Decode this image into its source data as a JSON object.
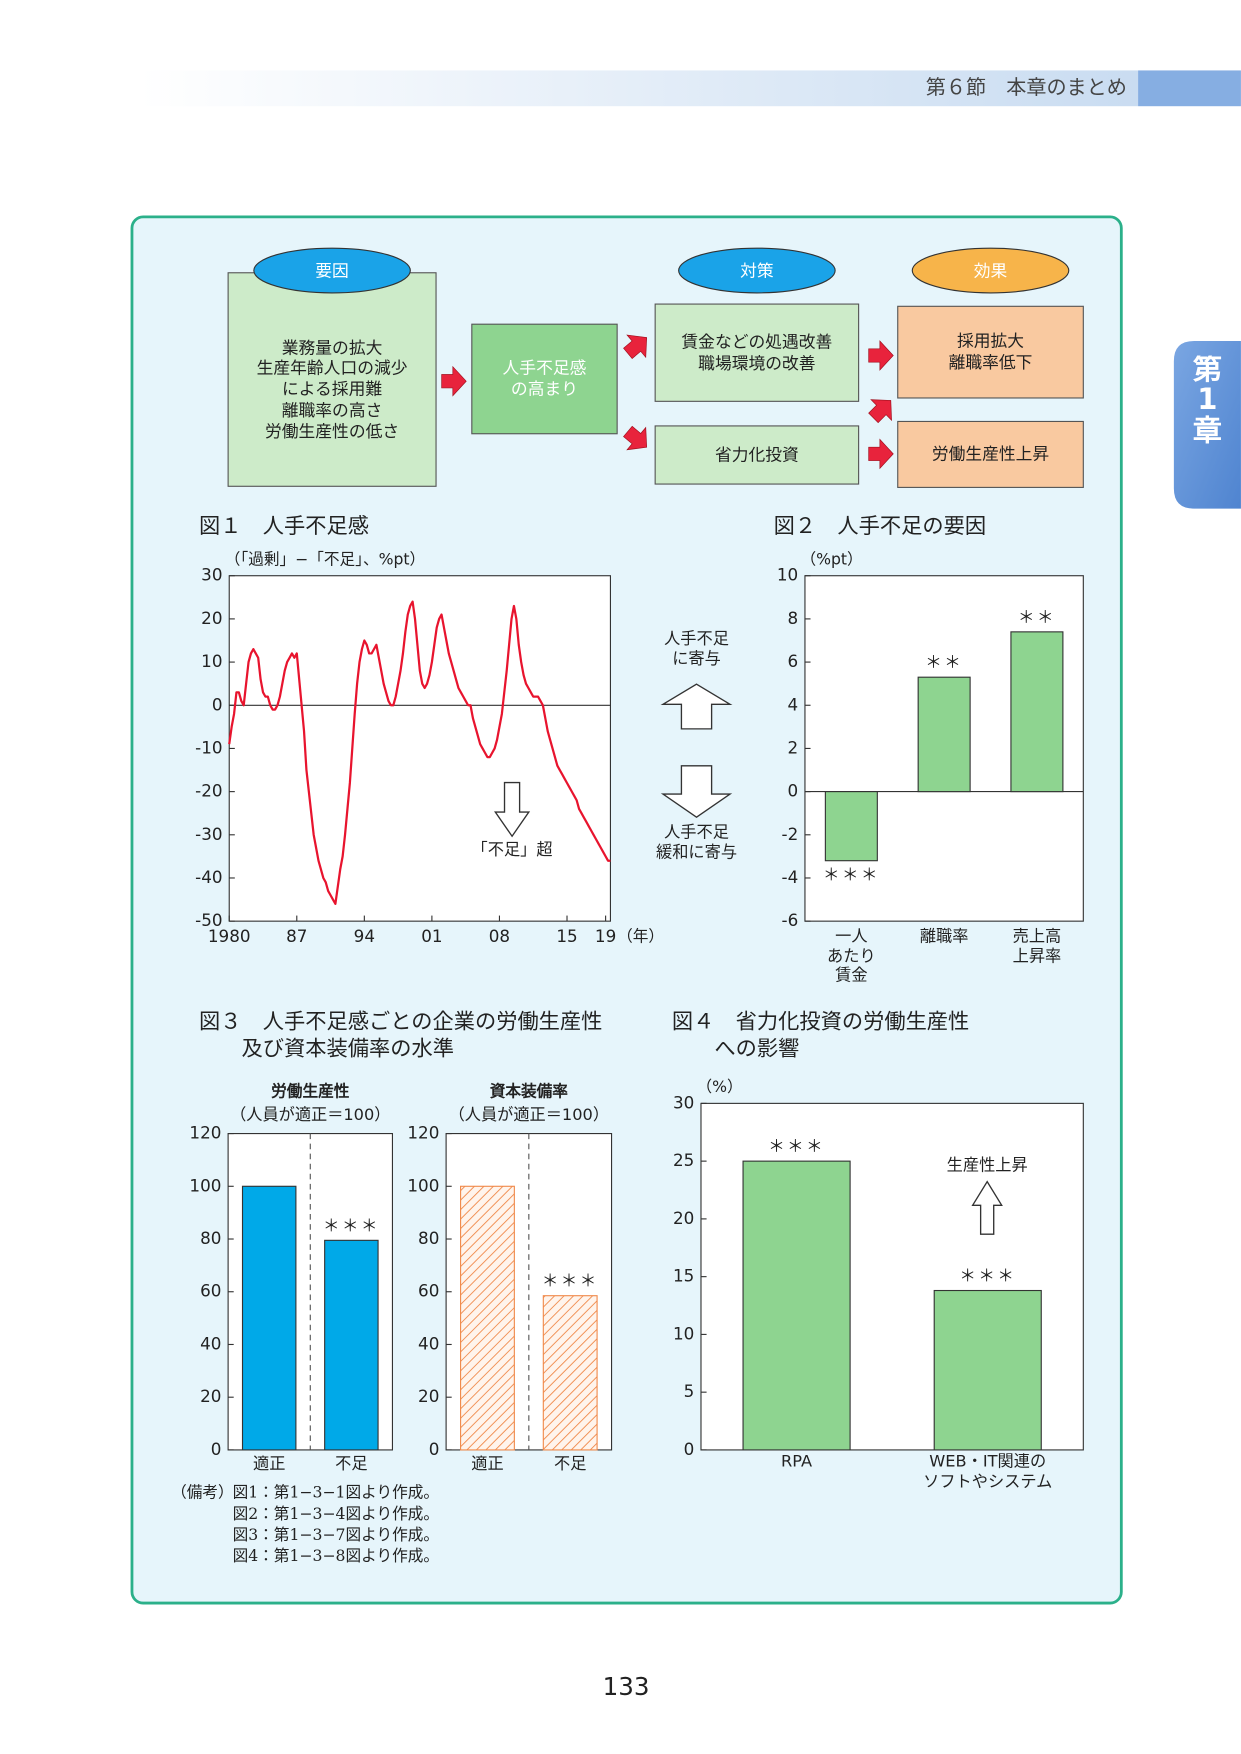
{
  "header": {
    "section": "第６節　本章のまとめ",
    "chapter_tab": "第\n1\n章"
  },
  "diagram": {
    "headers": [
      "要因",
      "対策",
      "効果"
    ],
    "boxes": [
      "業務量の拡大\n生産年齢人口の減少\nによる採用難\n離職率の高さ\n労働生産性の低さ",
      "人手不足感\nの高まり",
      "賃金などの処遇改善\n職場環境の改善",
      "省力化投資",
      "採用拡大\n離職率低下",
      "労働生産性上昇"
    ]
  },
  "chart_data": [
    {
      "type": "line",
      "title": "図１　人手不足感",
      "y_label": "（「過剰」−「不足」、%pt）",
      "x_unit": "（年）",
      "color": "#e8142e",
      "x": [
        1980,
        1980.25,
        1980.5,
        1980.75,
        1981,
        1981.25,
        1981.5,
        1981.75,
        1982,
        1982.25,
        1982.5,
        1982.75,
        1983,
        1983.25,
        1983.5,
        1983.75,
        1984,
        1984.25,
        1984.5,
        1984.75,
        1985,
        1985.25,
        1985.5,
        1985.75,
        1986,
        1986.25,
        1986.5,
        1986.75,
        1987,
        1987.25,
        1987.5,
        1987.75,
        1988,
        1988.25,
        1988.5,
        1988.75,
        1989,
        1989.25,
        1989.5,
        1989.75,
        1990,
        1990.25,
        1990.5,
        1990.75,
        1991,
        1991.25,
        1991.5,
        1991.75,
        1992,
        1992.25,
        1992.5,
        1992.75,
        1993,
        1993.25,
        1993.5,
        1993.75,
        1994,
        1994.25,
        1994.5,
        1994.75,
        1995,
        1995.25,
        1995.5,
        1995.75,
        1996,
        1996.25,
        1996.5,
        1996.75,
        1997,
        1997.25,
        1997.5,
        1997.75,
        1998,
        1998.25,
        1998.5,
        1998.75,
        1999,
        1999.25,
        1999.5,
        1999.75,
        2000,
        2000.25,
        2000.5,
        2000.75,
        2001,
        2001.25,
        2001.5,
        2001.75,
        2002,
        2002.25,
        2002.5,
        2002.75,
        2003,
        2003.25,
        2003.5,
        2003.75,
        2004,
        2004.25,
        2004.5,
        2004.75,
        2005,
        2005.25,
        2005.5,
        2005.75,
        2006,
        2006.25,
        2006.5,
        2006.75,
        2007,
        2007.25,
        2007.5,
        2007.75,
        2008,
        2008.25,
        2008.5,
        2008.75,
        2009,
        2009.25,
        2009.5,
        2009.75,
        2010,
        2010.25,
        2010.5,
        2010.75,
        2011,
        2011.25,
        2011.5,
        2011.75,
        2012,
        2012.25,
        2012.5,
        2012.75,
        2013,
        2013.25,
        2013.5,
        2013.75,
        2014,
        2014.25,
        2014.5,
        2014.75,
        2015,
        2015.25,
        2015.5,
        2015.75,
        2016,
        2016.25,
        2016.5,
        2016.75,
        2017,
        2017.25,
        2017.5,
        2017.75,
        2018,
        2018.25,
        2018.5,
        2018.75,
        2019,
        2019.25,
        2019.5
      ],
      "values": [
        -9,
        -5,
        -2,
        3,
        3,
        1,
        0,
        5,
        10,
        12,
        13,
        12,
        11,
        6,
        3,
        2,
        2,
        0,
        -1,
        -1,
        0,
        2,
        5,
        8,
        10,
        11,
        12,
        11,
        12,
        6,
        0,
        -6,
        -15,
        -20,
        -25,
        -30,
        -33,
        -36,
        -38,
        -40,
        -41,
        -43,
        -44,
        -45,
        -46,
        -42,
        -38,
        -35,
        -30,
        -24,
        -18,
        -10,
        -2,
        5,
        10,
        13,
        15,
        14,
        12,
        12,
        13,
        14,
        11,
        8,
        5,
        3,
        1,
        0,
        0,
        2,
        5,
        8,
        12,
        17,
        21,
        23,
        24,
        20,
        14,
        8,
        5,
        4,
        5,
        7,
        10,
        14,
        18,
        20,
        21,
        18,
        15,
        12,
        10,
        8,
        6,
        4,
        3,
        2,
        1,
        0,
        0,
        -3,
        -5,
        -7,
        -9,
        -10,
        -11,
        -12,
        -12,
        -11,
        -10,
        -8,
        -5,
        -2,
        3,
        8,
        14,
        20,
        23,
        20,
        14,
        10,
        7,
        5,
        4,
        3,
        2,
        2,
        2,
        1,
        0,
        -3,
        -6,
        -8,
        -10,
        -12,
        -14,
        -15,
        -16,
        -17,
        -18,
        -19,
        -20,
        -21,
        -22,
        -24,
        -25,
        -26,
        -27,
        -28,
        -29,
        -30,
        -31,
        -32,
        -33,
        -34,
        -35,
        -36,
        -36
      ],
      "xlim": [
        1980,
        2019.5
      ],
      "xticks": [
        1980,
        {
          "value": 1987,
          "label": "87"
        },
        {
          "value": 1994,
          "label": "94"
        },
        {
          "value": 2001,
          "label": "01"
        },
        {
          "value": 2008,
          "label": "08"
        },
        {
          "value": 2015,
          "label": "15"
        },
        {
          "value": 2019,
          "label": "19"
        }
      ],
      "ylim": [
        -50,
        30
      ],
      "yticks": [
        -50,
        -40,
        -30,
        -20,
        -10,
        0,
        10,
        20,
        30
      ],
      "zero_line": true,
      "annotations": [
        {
          "text": "「不足」超",
          "arrow": "down"
        }
      ]
    },
    {
      "type": "bar",
      "title": "図２　人手不足の要因",
      "y_label": "（%pt）",
      "color": "#8ed490",
      "categories": [
        "一人\nあたり\n賃金",
        "離職率",
        "売上高\n上昇率"
      ],
      "values": [
        -3.2,
        5.3,
        7.4
      ],
      "significance": [
        "＊＊＊",
        "＊＊",
        "＊＊"
      ],
      "ylim": [
        -6,
        10
      ],
      "yticks": [
        -6,
        -4,
        -2,
        0,
        2,
        4,
        6,
        8,
        10
      ],
      "zero_line": true,
      "annotations": [
        {
          "text": "人手不足\nに寄与",
          "arrow": "up"
        },
        {
          "text": "人手不足\n緩和に寄与",
          "arrow": "down"
        }
      ]
    },
    {
      "type": "bar",
      "title": "図３　人手不足感ごとの企業の労働生産性\n　　及び資本装備率の水準",
      "panel_title": "労働生産性",
      "subtitle": "（人員が適正＝100）",
      "color": "#00a9e8",
      "categories": [
        "適正",
        "不足"
      ],
      "values": [
        100,
        79.5
      ],
      "significance": [
        null,
        "＊＊＊"
      ],
      "ylim": [
        0,
        120
      ],
      "yticks": [
        0,
        20,
        40,
        60,
        80,
        100,
        120
      ],
      "divider": true
    },
    {
      "type": "bar",
      "panel_title": "資本装備率",
      "subtitle": "（人員が適正＝100）",
      "color": "#f08a4b",
      "pattern": "hatch",
      "categories": [
        "適正",
        "不足"
      ],
      "values": [
        100,
        58.5
      ],
      "significance": [
        null,
        "＊＊＊"
      ],
      "ylim": [
        0,
        120
      ],
      "yticks": [
        0,
        20,
        40,
        60,
        80,
        100,
        120
      ],
      "divider": true
    },
    {
      "type": "bar",
      "title": "図４　省力化投資の労働生産性\n　　への影響",
      "y_label": "（%）",
      "color": "#8ed490",
      "categories": [
        "RPA",
        "WEB・IT関連の\nソフトやシステム"
      ],
      "values": [
        25,
        13.8
      ],
      "significance": [
        "＊＊＊",
        "＊＊＊"
      ],
      "ylim": [
        0,
        30
      ],
      "yticks": [
        0,
        5,
        10,
        15,
        20,
        25,
        30
      ],
      "annotations": [
        {
          "text": "生産性上昇",
          "arrow": "up"
        }
      ]
    }
  ],
  "notes": {
    "label": "（備考）",
    "lines": [
      "図1：第1−3−1図より作成。",
      "図2：第1−3−4図より作成。",
      "図3：第1−3−7図より作成。",
      "図4：第1−3−8図より作成。"
    ]
  },
  "page_number": 133
}
